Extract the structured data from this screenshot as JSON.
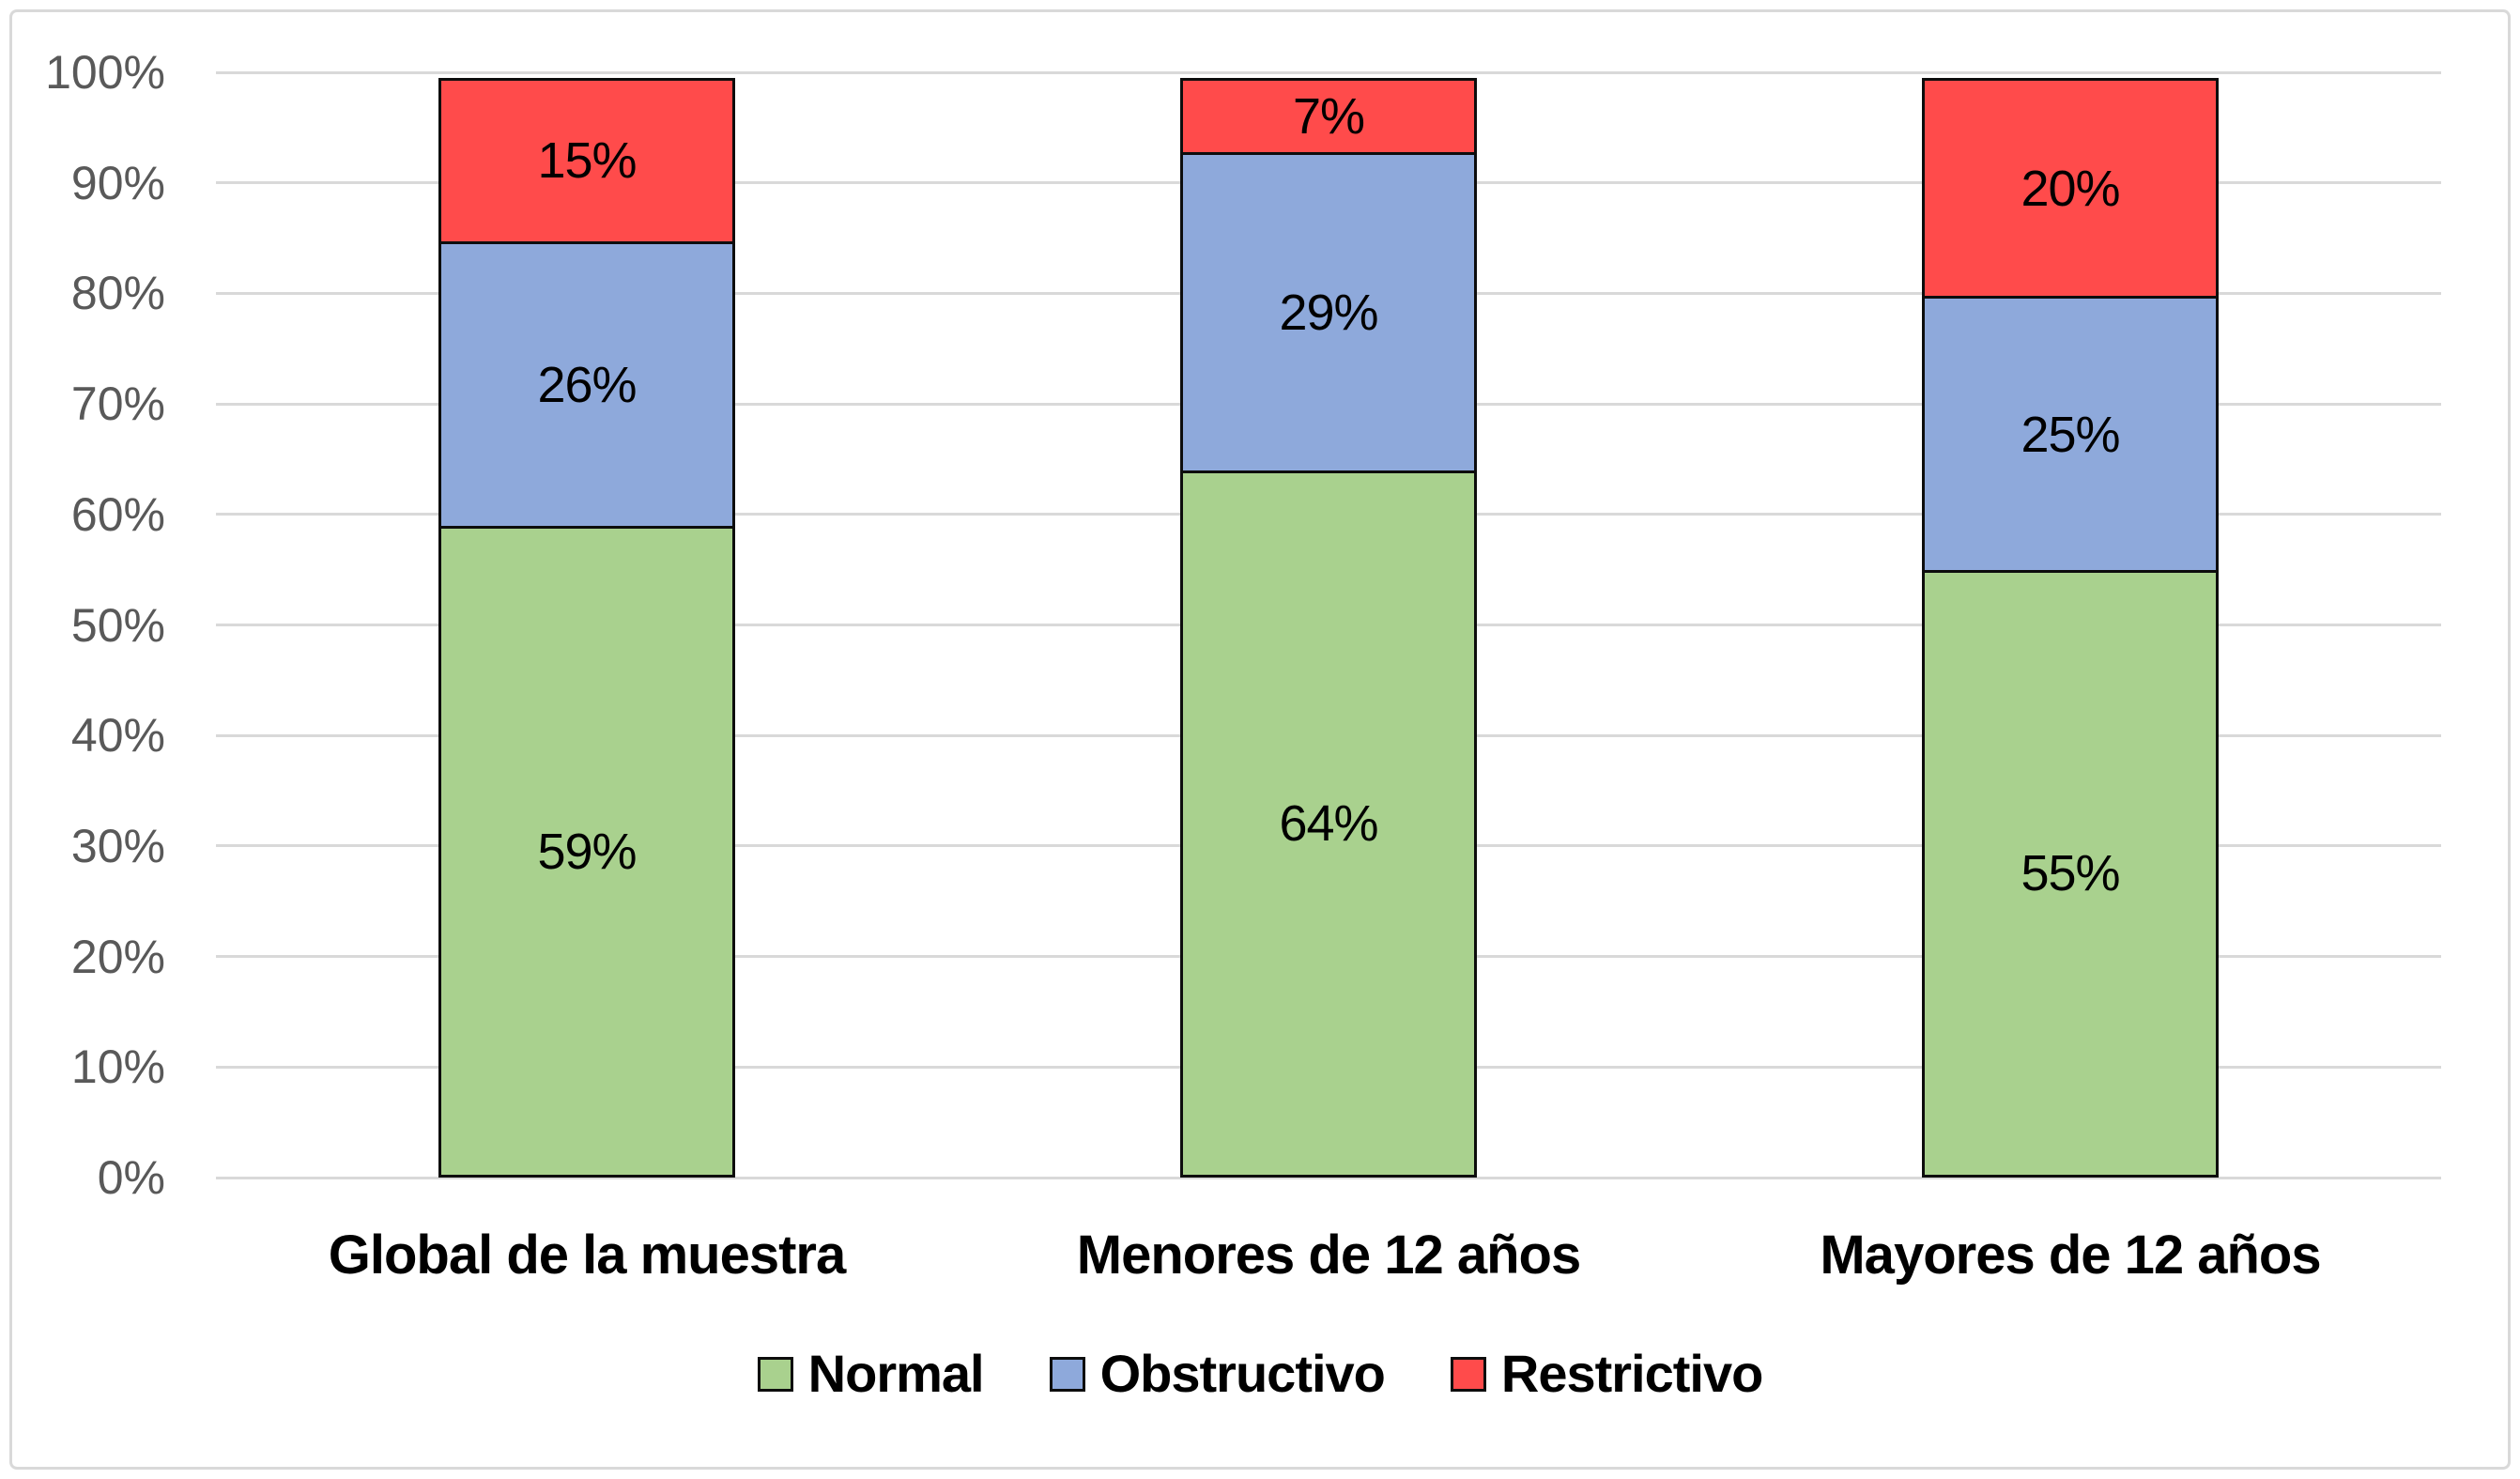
{
  "chart_data": {
    "type": "bar",
    "stacked": true,
    "percent_stacked": true,
    "title": "",
    "xlabel": "",
    "ylabel": "",
    "categories": [
      "Global de la muestra",
      "Menores de 12 años",
      "Mayores de 12 años"
    ],
    "series": [
      {
        "name": "Normal",
        "color": "#A9D18E",
        "values": [
          59,
          64,
          55
        ]
      },
      {
        "name": "Obstructivo",
        "color": "#8EA9DB",
        "values": [
          26,
          29,
          25
        ]
      },
      {
        "name": "Restrictivo",
        "color": "#FF4B4B",
        "values": [
          15,
          7,
          20
        ]
      }
    ],
    "value_label_suffix": "%",
    "yticks": [
      "0%",
      "10%",
      "20%",
      "30%",
      "40%",
      "50%",
      "60%",
      "70%",
      "80%",
      "90%",
      "100%"
    ],
    "ylim": [
      0,
      100
    ],
    "grid": true,
    "legend_position": "bottom"
  },
  "colors": {
    "background": "#FFFFFF",
    "frame_border": "#D9D9D9",
    "gridline": "#D9D9D9",
    "axis_text": "#595959",
    "bar_border": "#0D0D0D",
    "label_text": "#000000"
  }
}
